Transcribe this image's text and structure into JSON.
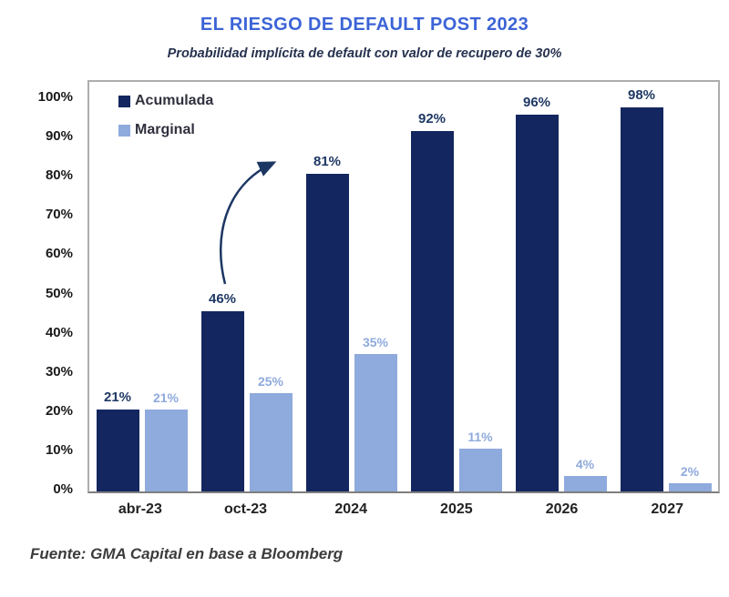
{
  "page": {
    "title": "EL RIESGO DE DEFAULT POST 2023",
    "subtitle": "Probabilidad implícita de default con valor de recupero de 30%",
    "source": "Fuente: GMA Capital en base a Bloomberg"
  },
  "colors": {
    "title": "#3C64D7",
    "acumulada_bar": "#13265F",
    "acumulada_label": "#1F3864",
    "marginal_bar": "#8FAADC",
    "marginal_label": "#8FAADC",
    "arrow": "#1C3663",
    "axis_text": "#1A1A1A",
    "plot_border": "#ADADAD"
  },
  "chart_data": {
    "type": "bar",
    "title": "EL RIESGO DE DEFAULT POST 2023",
    "subtitle": "Probabilidad implícita de default con valor de recupero de 30%",
    "source": "Fuente: GMA Capital en base a Bloomberg",
    "categories": [
      "abr-23",
      "oct-23",
      "2024",
      "2025",
      "2026",
      "2027"
    ],
    "series": [
      {
        "name": "Acumulada",
        "color": "#13265F",
        "label_color": "#1F3864",
        "values": [
          21,
          46,
          81,
          92,
          96,
          98
        ]
      },
      {
        "name": "Marginal",
        "color": "#8FAADC",
        "label_color": "#8FAADC",
        "values": [
          21,
          25,
          35,
          11,
          4,
          2
        ]
      }
    ],
    "value_label_suffix": "%",
    "ylim": [
      0,
      100
    ],
    "ytick_step": 10,
    "ytick_labels": [
      "0%",
      "10%",
      "20%",
      "30%",
      "40%",
      "50%",
      "60%",
      "70%",
      "80%",
      "90%",
      "100%"
    ],
    "grid": false,
    "legend_position": "top-left-inside",
    "annotation": {
      "type": "curved-arrow",
      "from_label": "46%",
      "to_label": "81%"
    }
  }
}
